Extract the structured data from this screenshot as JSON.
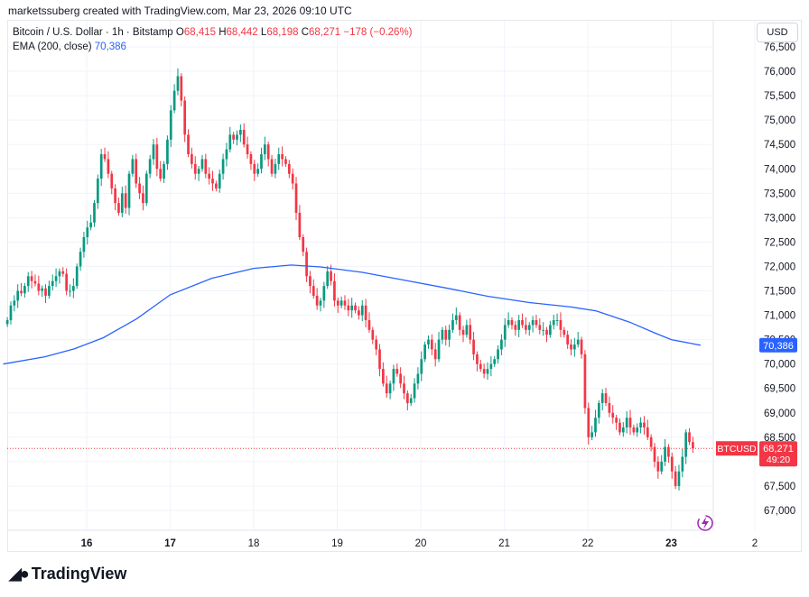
{
  "credit": "marketssuberg created with TradingView.com, Mar 23, 2026 09:10 UTC",
  "legend": {
    "symbol": "Bitcoin / U.S. Dollar · 1h · Bitstamp",
    "o_label": "O",
    "o": "68,415",
    "h_label": "H",
    "h": "68,442",
    "l_label": "L",
    "l": "68,198",
    "c_label": "C",
    "c": "68,271",
    "change": "−178 (−0.26%)",
    "ema_label": "EMA (200, close)",
    "ema_value": "70,386"
  },
  "currency_button": "USD",
  "brand": "TradingView",
  "price_tag": {
    "symbol": "BTCUSD",
    "price": "68,271",
    "countdown": "49:20"
  },
  "ema_tag": "70,386",
  "colors": {
    "up": "#089981",
    "down": "#f23645",
    "ema": "#2962ff",
    "grid": "#f0f3fa"
  },
  "chart_data": {
    "type": "candlestick",
    "title": "",
    "x_tick_labels": [
      "16",
      "17",
      "18",
      "19",
      "20",
      "21",
      "22",
      "23",
      "2"
    ],
    "y_tick_labels": [
      "76,500",
      "76,000",
      "75,500",
      "75,000",
      "74,500",
      "74,000",
      "73,500",
      "73,000",
      "72,500",
      "72,000",
      "71,500",
      "71,000",
      "70,500",
      "70,000",
      "69,500",
      "69,000",
      "68,500",
      "68,000",
      "67,500",
      "67,000"
    ],
    "ylim": [
      66800,
      76700
    ],
    "current_price": 68271,
    "ema_series": {
      "name": "EMA (200, close)",
      "points": [
        [
          15.0,
          70000
        ],
        [
          15.5,
          70150
        ],
        [
          15.85,
          70310
        ],
        [
          16.2,
          70540
        ],
        [
          16.6,
          70930
        ],
        [
          17.0,
          71420
        ],
        [
          17.5,
          71760
        ],
        [
          18.0,
          71960
        ],
        [
          18.45,
          72030
        ],
        [
          18.8,
          71990
        ],
        [
          19.3,
          71880
        ],
        [
          19.8,
          71720
        ],
        [
          20.3,
          71560
        ],
        [
          20.8,
          71390
        ],
        [
          21.3,
          71260
        ],
        [
          21.8,
          71170
        ],
        [
          22.1,
          71090
        ],
        [
          22.5,
          70860
        ],
        [
          22.8,
          70640
        ],
        [
          23.0,
          70500
        ],
        [
          23.35,
          70386
        ]
      ]
    },
    "candles_hourly_close": [
      70900,
      71200,
      71300,
      71500,
      71450,
      71600,
      71800,
      71700,
      71650,
      71500,
      71550,
      71400,
      71600,
      71700,
      71800,
      71900,
      71850,
      71500,
      71500,
      71600,
      72000,
      72300,
      72600,
      72800,
      72900,
      73300,
      73800,
      74300,
      74200,
      73900,
      73600,
      73300,
      73100,
      73500,
      73200,
      73900,
      74200,
      73700,
      73500,
      73300,
      73900,
      74200,
      74500,
      74000,
      73800,
      74100,
      74600,
      75200,
      75600,
      75900,
      75400,
      74700,
      74300,
      74100,
      73900,
      74000,
      74200,
      73900,
      73800,
      73700,
      73600,
      73900,
      74200,
      74400,
      74700,
      74600,
      74700,
      74800,
      74500,
      74300,
      74100,
      73900,
      74000,
      74300,
      74500,
      74200,
      73900,
      74100,
      74300,
      74200,
      74100,
      73900,
      73700,
      73100,
      72600,
      72300,
      71800,
      71600,
      71400,
      71200,
      71300,
      71600,
      71900,
      71700,
      71300,
      71200,
      71300,
      71200,
      71100,
      71200,
      71100,
      71000,
      71200,
      70900,
      70700,
      70500,
      70300,
      69900,
      69600,
      69400,
      69600,
      69900,
      69800,
      69600,
      69400,
      69200,
      69300,
      69600,
      69800,
      70100,
      70400,
      70500,
      70300,
      70100,
      70500,
      70700,
      70500,
      70700,
      70900,
      71000,
      70700,
      70600,
      70800,
      70500,
      70200,
      70000,
      69900,
      69800,
      69900,
      70000,
      70100,
      70300,
      70500,
      70800,
      70900,
      70800,
      70700,
      70900,
      70800,
      70700,
      70800,
      70900,
      70800,
      70700,
      70700,
      70600,
      70800,
      70900,
      70900,
      70700,
      70600,
      70400,
      70300,
      70400,
      70500,
      70200,
      69100,
      68500,
      68600,
      68900,
      69200,
      69400,
      69200,
      69000,
      68900,
      68800,
      68600,
      68700,
      68900,
      68700,
      68600,
      68700,
      68800,
      68700,
      68500,
      68300,
      68000,
      67800,
      68000,
      68300,
      68100,
      67800,
      67500,
      67800,
      68100,
      68600,
      68400,
      68271
    ]
  }
}
